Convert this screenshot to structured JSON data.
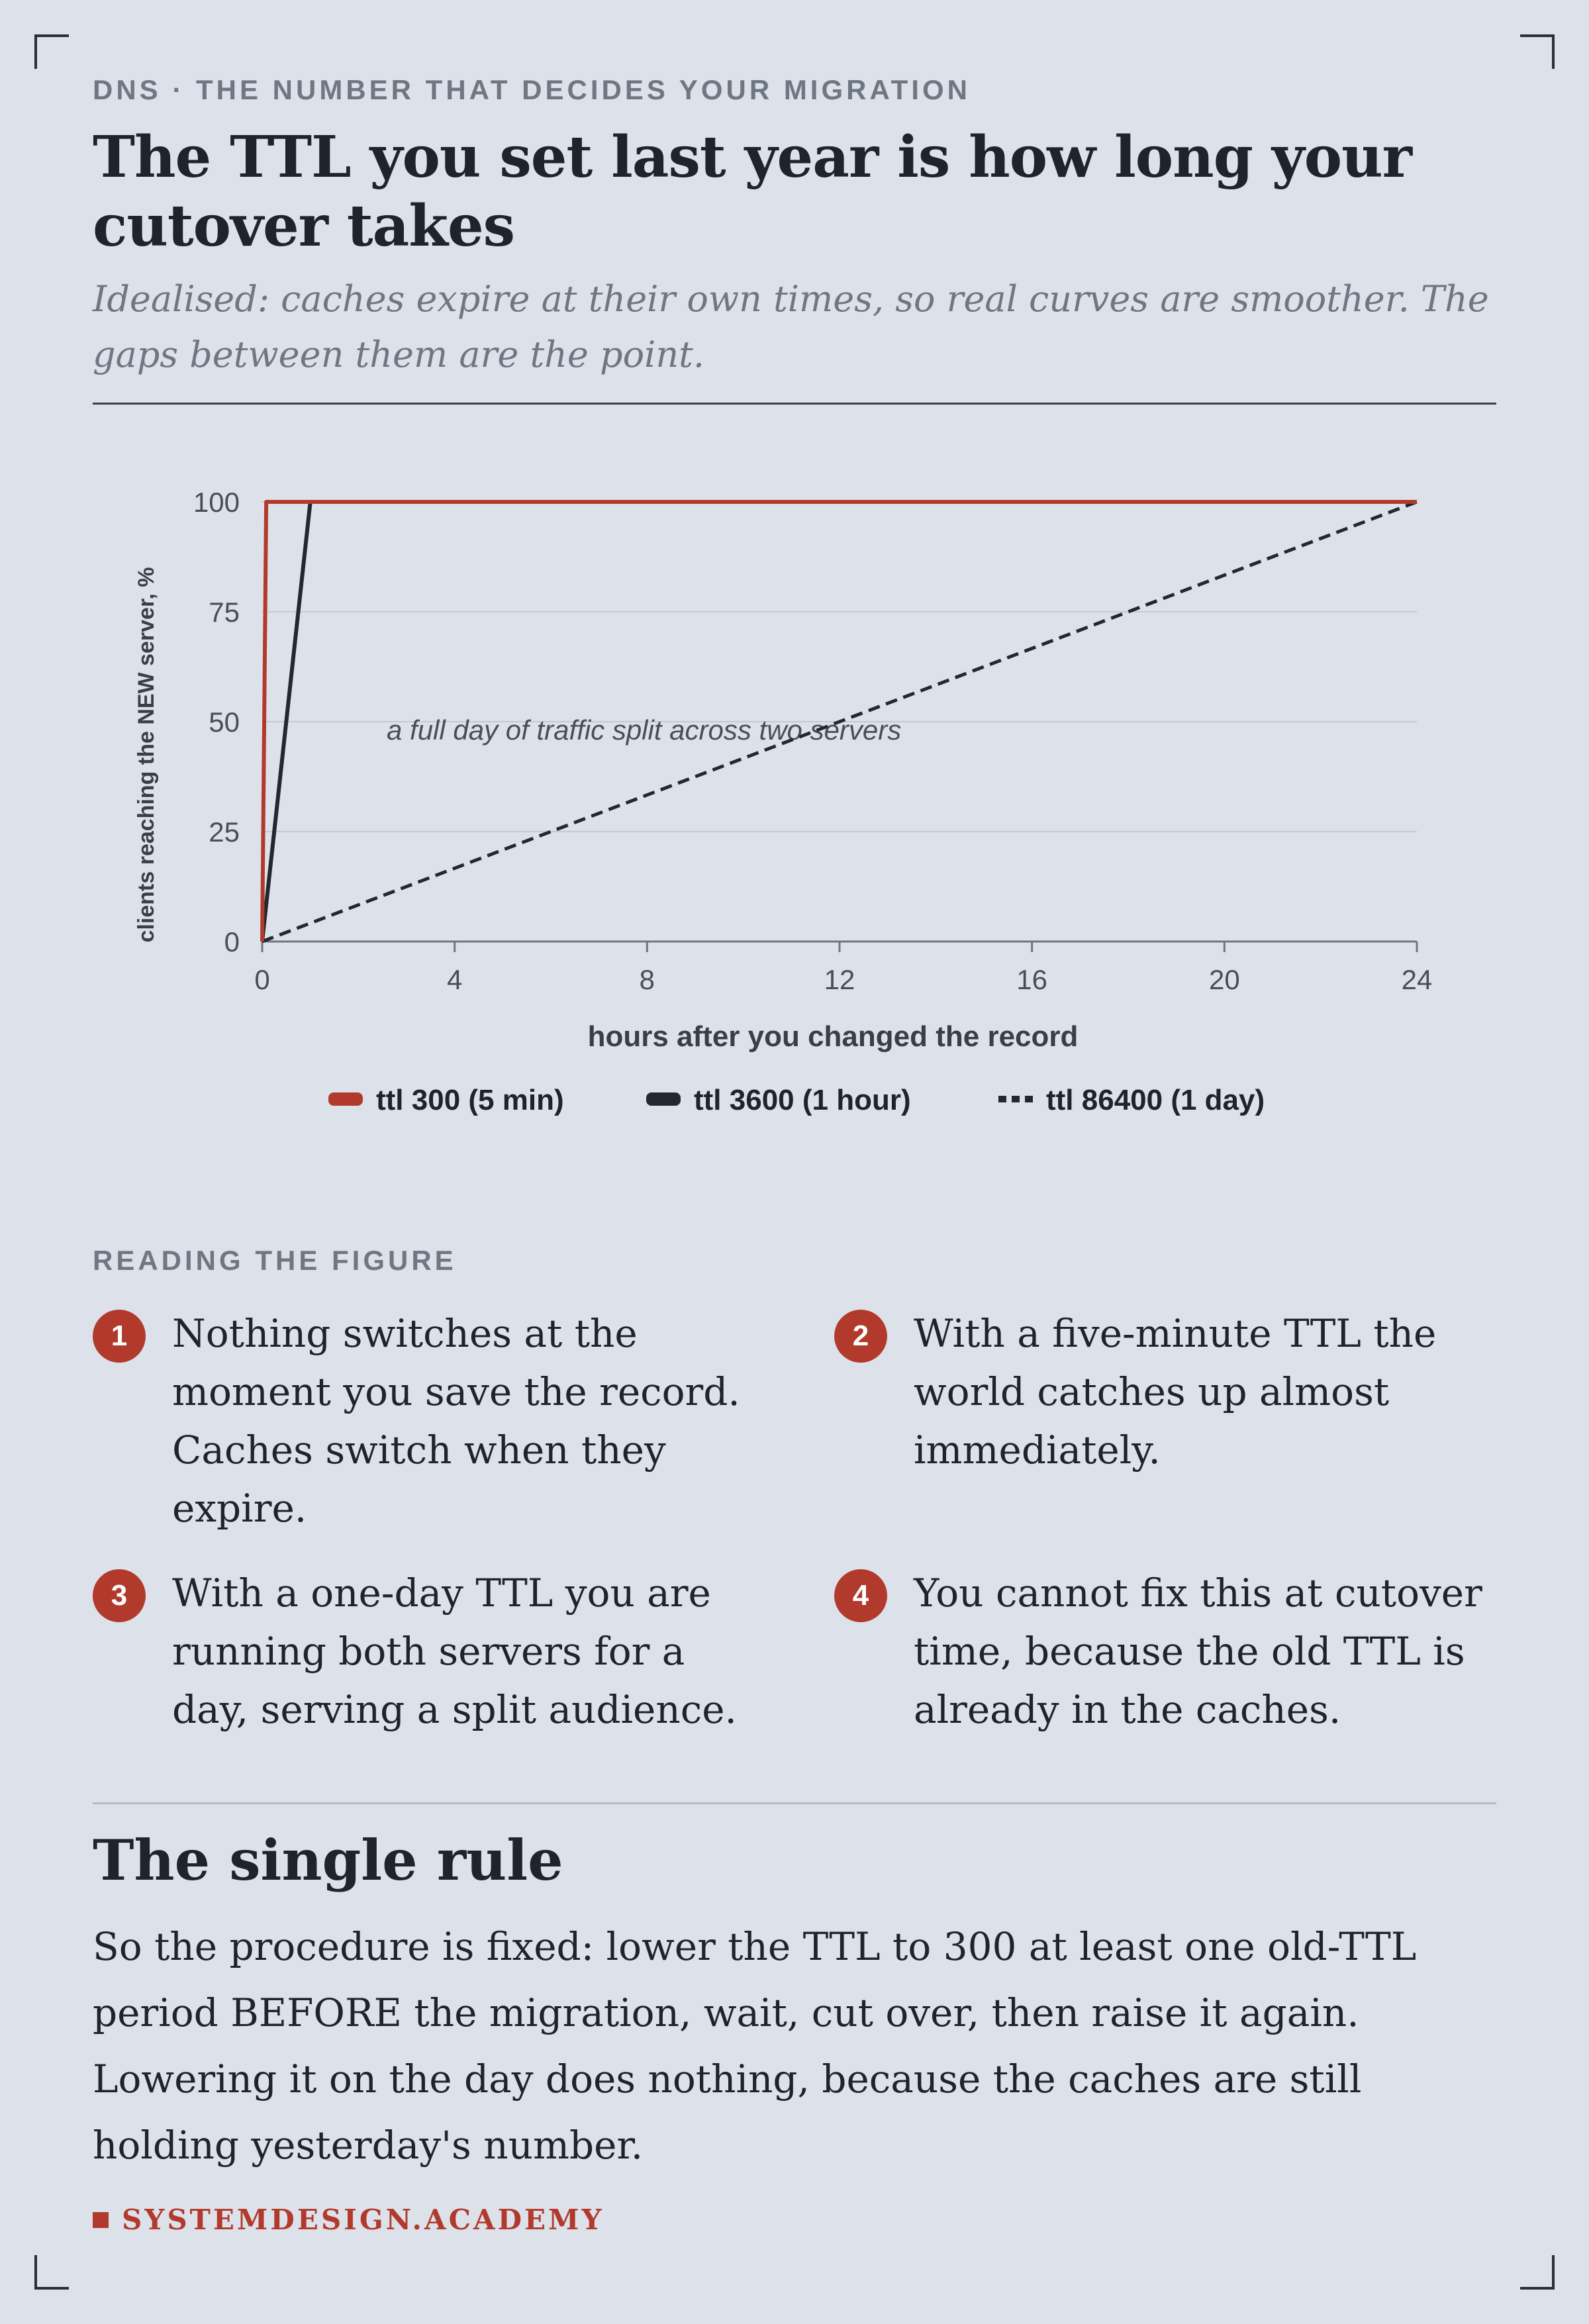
{
  "header": {
    "eyebrow": "DNS · THE NUMBER THAT DECIDES YOUR MIGRATION",
    "title": "The TTL you set last year is how long your cutover takes",
    "subtitle": "Idealised: caches expire at their own times, so real curves are smoother. The gaps between them are the point."
  },
  "chart_data": {
    "type": "line",
    "xlabel": "hours after you changed the record",
    "ylabel": "clients reaching the NEW server, %",
    "xlim": [
      0,
      24
    ],
    "ylim": [
      0,
      100
    ],
    "x_ticks": [
      0,
      4,
      8,
      12,
      16,
      20,
      24
    ],
    "y_ticks": [
      0,
      25,
      50,
      75,
      100
    ],
    "grid": "horizontal",
    "legend_position": "bottom",
    "annotation": "a full day of traffic split across two servers",
    "series": [
      {
        "name": "ttl 300 (5 min)",
        "color": "#b23a2c",
        "style": "solid",
        "x": [
          0,
          0.0833,
          24
        ],
        "y": [
          0,
          100,
          100
        ]
      },
      {
        "name": "ttl 3600 (1 hour)",
        "color": "#23272e",
        "style": "solid",
        "x": [
          0,
          1,
          24
        ],
        "y": [
          0,
          100,
          100
        ]
      },
      {
        "name": "ttl 86400 (1 day)",
        "color": "#23272e",
        "style": "dashed",
        "x": [
          0,
          24
        ],
        "y": [
          0,
          100
        ]
      }
    ]
  },
  "reading": {
    "label": "READING THE FIGURE",
    "notes": [
      {
        "num": "1",
        "text": "Nothing switches at the moment you save the record. Caches switch when they expire."
      },
      {
        "num": "2",
        "text": "With a five-minute TTL the world catches up almost immediately."
      },
      {
        "num": "3",
        "text": "With a one-day TTL you are running both servers for a day, serving a split audience."
      },
      {
        "num": "4",
        "text": "You cannot fix this at cutover time, because the old TTL is already in the caches."
      }
    ]
  },
  "rule_section": {
    "heading": "The single rule",
    "body": "So the procedure is fixed: lower the TTL to 300 at least one old-TTL period BEFORE the migration, wait, cut over, then raise it again. Lowering it on the day does nothing, because the caches are still holding yesterday's number."
  },
  "footer": {
    "brand": "SYSTEMDESIGN.ACADEMY"
  },
  "colors": {
    "accent": "#b23a2c",
    "ink": "#1f242c",
    "muted": "#6f7782",
    "background": "#dde1e9"
  }
}
